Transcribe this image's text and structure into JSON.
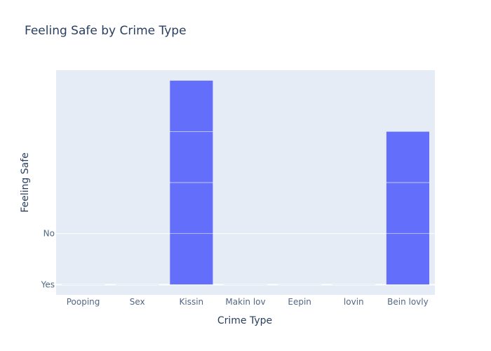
{
  "chart_data": {
    "type": "bar",
    "title": "Feeling Safe by Crime Type",
    "xlabel": "Crime Type",
    "ylabel": "Feeling Safe",
    "categories": [
      "Pooping",
      "Sex",
      "Kissin",
      "Makin lov",
      "Eepin",
      "lovin",
      "Bein lovly"
    ],
    "y_tick_labels": [
      "Yes",
      "No"
    ],
    "series": [
      {
        "values": [
          0,
          0,
          4,
          0,
          0,
          0,
          3
        ],
        "segments": [
          1,
          1,
          1,
          1,
          1,
          1,
          1
        ]
      }
    ],
    "ylim": [
      -0.2,
      4.2
    ],
    "grid": true,
    "colors": {
      "bar": "#636efa",
      "plot_background": "#e5ecf6",
      "grid": "#ffffff",
      "text": "#2a3f5f",
      "tick_text": "#506784"
    }
  }
}
